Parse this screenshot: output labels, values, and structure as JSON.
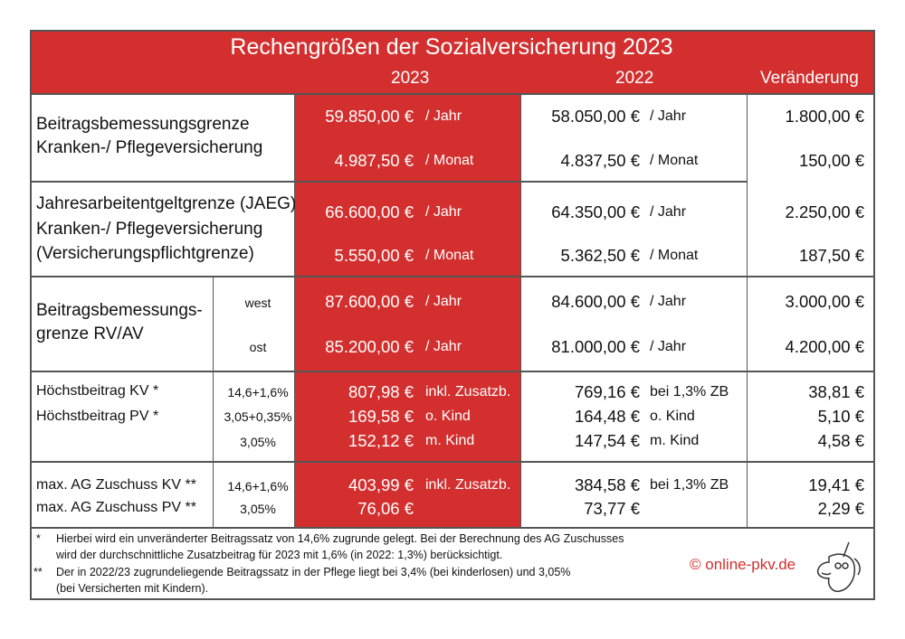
{
  "title": "Rechengrößen der Sozialversicherung 2023",
  "headers": {
    "y2023": "2023",
    "y2022": "2022",
    "change": "Veränderung"
  },
  "colors": {
    "accent": "#d32f2f",
    "border": "#555555"
  },
  "groups": [
    {
      "label": [
        "Beitragsbemessungsgrenze",
        "Kranken-/ Pflegeversicherung"
      ],
      "rows": [
        {
          "v2023": "59.850,00 €",
          "u2023": "/ Jahr",
          "v2022": "58.050,00 €",
          "u2022": "/ Jahr",
          "change": "1.800,00 €"
        },
        {
          "v2023": "4.987,50 €",
          "u2023": "/ Monat",
          "v2022": "4.837,50 €",
          "u2022": "/ Monat",
          "change": "150,00 €"
        }
      ]
    },
    {
      "label": [
        "Jahresarbeitentgeltgrenze (JAEG)",
        "Kranken-/ Pflegeversicherung",
        "(Versicherungspflichtgrenze)"
      ],
      "rows": [
        {
          "v2023": "66.600,00 €",
          "u2023": "/ Jahr",
          "v2022": "64.350,00 €",
          "u2022": "/ Jahr",
          "change": "2.250,00 €"
        },
        {
          "v2023": "5.550,00 €",
          "u2023": "/ Monat",
          "v2022": "5.362,50 €",
          "u2022": "/ Monat",
          "change": "187,50 €"
        }
      ]
    },
    {
      "label": [
        "Beitragsbemessungs-",
        "grenze RV/AV"
      ],
      "rows": [
        {
          "sub": "west",
          "v2023": "87.600,00 €",
          "u2023": "/ Jahr",
          "v2022": "84.600,00 €",
          "u2022": "/ Jahr",
          "change": "3.000,00 €"
        },
        {
          "sub": "ost",
          "v2023": "85.200,00 €",
          "u2023": "/ Jahr",
          "v2022": "81.000,00 €",
          "u2022": "/ Jahr",
          "change": "4.200,00 €"
        }
      ]
    },
    {
      "label": [
        "Höchstbeitrag KV *",
        "Höchstbeitrag PV *"
      ],
      "rows": [
        {
          "sub": "14,6+1,6%",
          "v2023": "807,98 €",
          "u2023": "inkl. Zusatzb.",
          "v2022": "769,16 €",
          "u2022": "bei 1,3% ZB",
          "change": "38,81 €"
        },
        {
          "sub": "3,05+0,35%",
          "v2023": "169,58 €",
          "u2023": "o. Kind",
          "v2022": "164,48 €",
          "u2022": "o. Kind",
          "change": "5,10 €"
        },
        {
          "sub": "3,05%",
          "v2023": "152,12 €",
          "u2023": "m. Kind",
          "v2022": "147,54 €",
          "u2022": "m. Kind",
          "change": "4,58 €"
        }
      ]
    },
    {
      "label": [
        "max. AG Zuschuss KV **",
        "max. AG Zuschuss PV **"
      ],
      "rows": [
        {
          "sub": "14,6+1,6%",
          "v2023": "403,99 €",
          "u2023": "inkl. Zusatzb.",
          "v2022": "384,58 €",
          "u2022": "bei 1,3% ZB",
          "change": "19,41 €"
        },
        {
          "sub": "3,05%",
          "v2023": "76,06 €",
          "v2022": "73,77 €",
          "change": "2,29 €"
        }
      ]
    }
  ],
  "footnotes": [
    {
      "mark": "*",
      "lines": [
        "Hierbei wird ein unveränderter Beitragssatz von 14,6% zugrunde gelegt. Bei der Berechnung des AG Zuschusses",
        "wird der durchschnittliche Zusatzbeitrag für 2023 mit 1,6% (in 2022: 1,3%) berücksichtigt."
      ]
    },
    {
      "mark": "**",
      "lines": [
        "Der in 2022/23 zugrundeliegende Beitragssatz in der Pflege liegt bei 3,4% (bei kinderlosen) und 3,05%",
        "(bei Versicherten mit Kindern)."
      ]
    }
  ],
  "copyright": "© online-pkv.de",
  "logo": "unicorn-mascot"
}
